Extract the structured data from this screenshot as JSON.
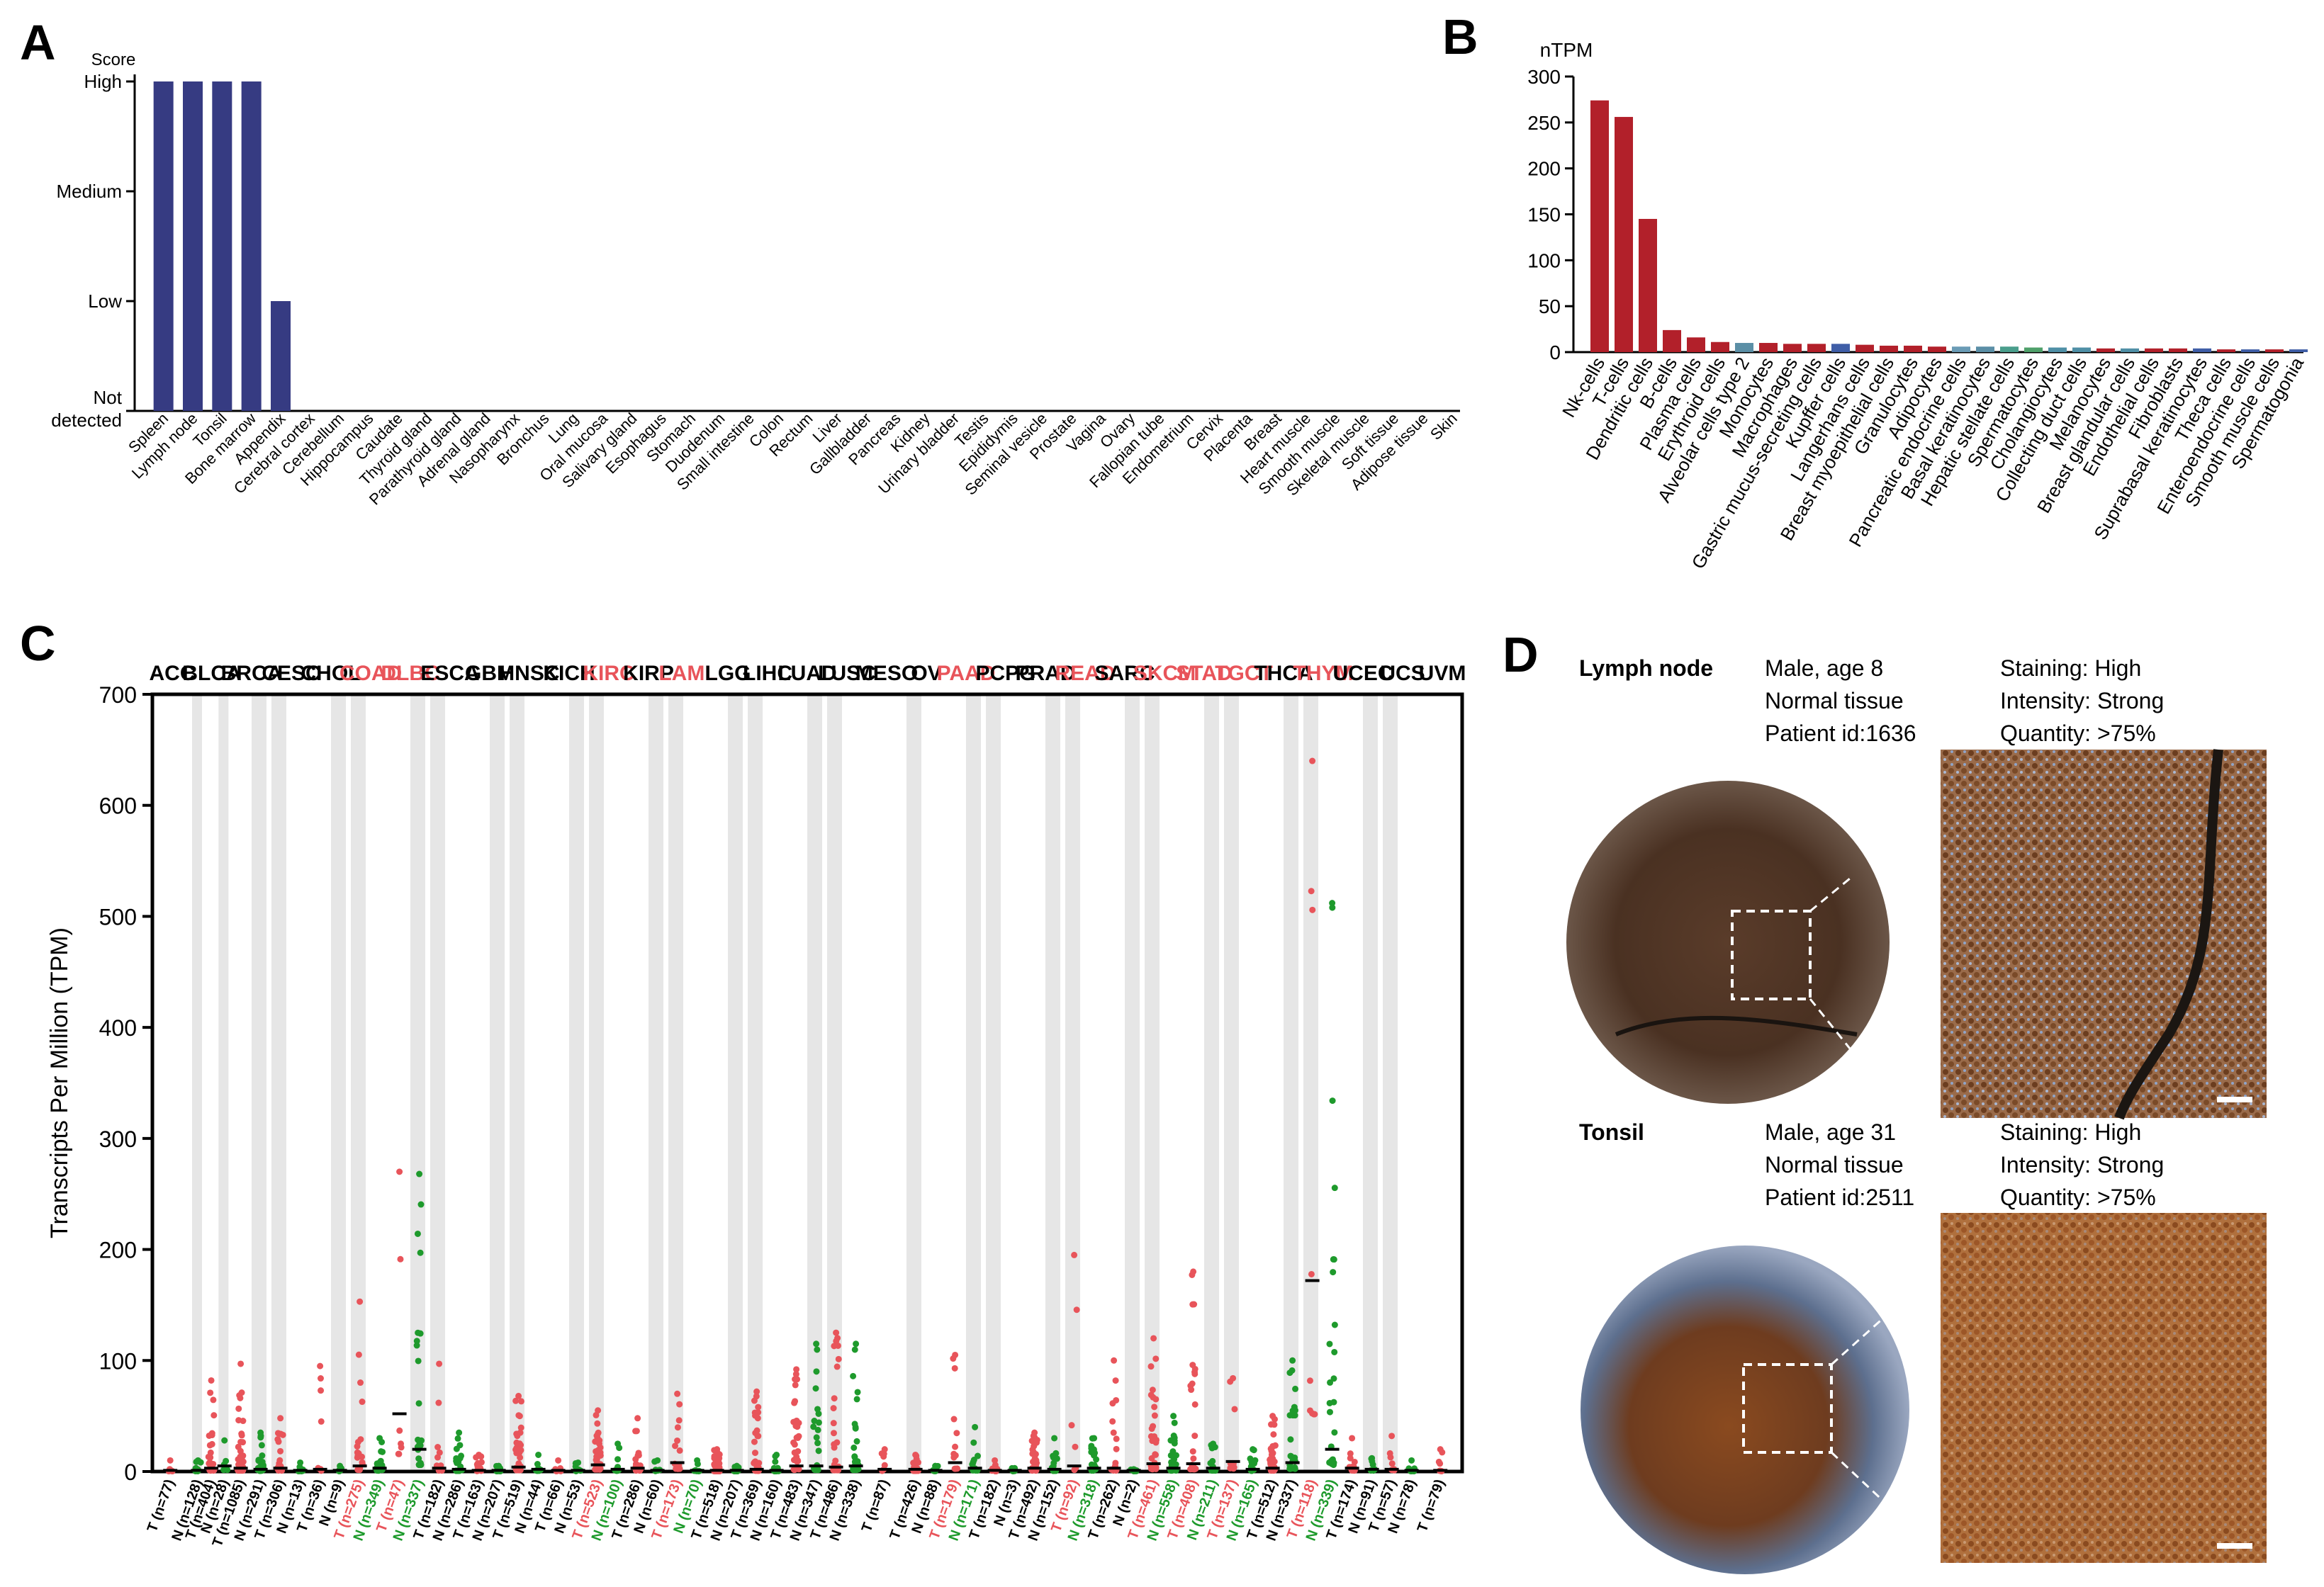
{
  "panels": {
    "a": "A",
    "b": "B",
    "c": "C",
    "d": "D"
  },
  "chart_data": [
    {
      "id": "A",
      "type": "bar",
      "title": "",
      "ylabel": "Score",
      "yticks": [
        "Not detected",
        "Low",
        "Medium",
        "High"
      ],
      "ylim": [
        0,
        3
      ],
      "categories": [
        "Spleen",
        "Lymph node",
        "Tonsil",
        "Bone marrow",
        "Appendix",
        "Cerebral cortex",
        "Cerebellum",
        "Hippocampus",
        "Caudate",
        "Thyroid gland",
        "Parathyroid gland",
        "Adrenal gland",
        "Nasopharynx",
        "Bronchus",
        "Lung",
        "Oral mucosa",
        "Salivary gland",
        "Esophagus",
        "Stomach",
        "Duodenum",
        "Small intestine",
        "Colon",
        "Rectum",
        "Liver",
        "Gallbladder",
        "Pancreas",
        "Kidney",
        "Urinary bladder",
        "Testis",
        "Epididymis",
        "Seminal vesicle",
        "Prostate",
        "Vagina",
        "Ovary",
        "Fallopian tube",
        "Endometrium",
        "Cervix",
        "Placenta",
        "Breast",
        "Heart muscle",
        "Smooth muscle",
        "Skeletal muscle",
        "Soft tissue",
        "Adipose tissue",
        "Skin"
      ],
      "values": [
        3,
        3,
        3,
        3,
        1,
        0,
        0,
        0,
        0,
        0,
        0,
        0,
        0,
        0,
        0,
        0,
        0,
        0,
        0,
        0,
        0,
        0,
        0,
        0,
        0,
        0,
        0,
        0,
        0,
        0,
        0,
        0,
        0,
        0,
        0,
        0,
        0,
        0,
        0,
        0,
        0,
        0,
        0,
        0,
        0
      ],
      "color": "#363b82"
    },
    {
      "id": "B",
      "type": "bar",
      "ylabel": "nTPM",
      "ylim": [
        0,
        300
      ],
      "yticks": [
        0,
        50,
        100,
        150,
        200,
        250,
        300
      ],
      "categories": [
        "Nk-cells",
        "T-cells",
        "Dendritic cells",
        "B-cells",
        "Plasma cells",
        "Erythroid cells",
        "Alveolar cells type 2",
        "Monocytes",
        "Macrophages",
        "Gastric mucus-secreting cells",
        "Kupffer cells",
        "Langerhans cells",
        "Breast myoepithelial cells",
        "Granulocytes",
        "Adipocytes",
        "Pancreatic endocrine cells",
        "Basal keratinocytes",
        "Hepatic stellate cells",
        "Spermatocytes",
        "Cholangiocytes",
        "Collecting duct cells",
        "Melanocytes",
        "Breast glandular cells",
        "Endothelial cells",
        "Fibroblasts",
        "Suprabasal keratinocytes",
        "Theca cells",
        "Enteroendocrine cells",
        "Smooth muscle cells",
        "Spermatogonia"
      ],
      "values": [
        274,
        256,
        145,
        24,
        16,
        11,
        10,
        10,
        9,
        9,
        9,
        8,
        7,
        7,
        6,
        6,
        6,
        6,
        5,
        5,
        5,
        4,
        4,
        4,
        4,
        4,
        3,
        3,
        3,
        3
      ],
      "colors": [
        "#b2202a",
        "#b2202a",
        "#b2202a",
        "#b2202a",
        "#b2202a",
        "#b2202a",
        "#5b8fa6",
        "#b2202a",
        "#b2202a",
        "#b2202a",
        "#3f5ea7",
        "#b2202a",
        "#b2202a",
        "#b2202a",
        "#b2202a",
        "#6a9bb5",
        "#5b8fa6",
        "#4a9e8c",
        "#4fa06a",
        "#4f8fa6",
        "#4f8fa6",
        "#b2202a",
        "#4f8fa6",
        "#b2202a",
        "#b2202a",
        "#3f5ea7",
        "#b2202a",
        "#3f5ea7",
        "#b2202a",
        "#3f5ea7"
      ]
    },
    {
      "id": "C",
      "type": "scatter",
      "ylabel": "Transcripts Per Million (TPM)",
      "ylim": [
        0,
        700
      ],
      "yticks": [
        0,
        100,
        200,
        300,
        400,
        500,
        600,
        700
      ],
      "cancers": [
        {
          "name": "ACC",
          "hl": false,
          "groups": [
            {
              "g": "T",
              "n": 77,
              "med": 1,
              "max": 10
            }
          ]
        },
        {
          "name": "BLCA",
          "hl": false,
          "groups": [
            {
              "g": "N",
              "n": 128,
              "med": 1,
              "max": 10
            },
            {
              "g": "T",
              "n": 404,
              "med": 3,
              "max": 82
            },
            {
              "g": "N",
              "n": 28,
              "med": 5,
              "max": 28
            }
          ]
        },
        {
          "name": "BRCA",
          "hl": false,
          "groups": [
            {
              "g": "T",
              "n": 1085,
              "med": 3,
              "max": 97
            },
            {
              "g": "N",
              "n": 291,
              "med": 2,
              "max": 35
            }
          ]
        },
        {
          "name": "CESC",
          "hl": false,
          "groups": [
            {
              "g": "T",
              "n": 306,
              "med": 3,
              "max": 48
            },
            {
              "g": "N",
              "n": 13,
              "med": 1,
              "max": 8
            }
          ]
        },
        {
          "name": "CHOL",
          "hl": false,
          "groups": [
            {
              "g": "T",
              "n": 36,
              "med": 2,
              "max": 95
            },
            {
              "g": "N",
              "n": 9,
              "med": 1,
              "max": 5
            }
          ]
        },
        {
          "name": "COAD",
          "hl": true,
          "groups": [
            {
              "g": "T",
              "n": 275,
              "med": 5,
              "max": 153
            },
            {
              "g": "N",
              "n": 349,
              "med": 3,
              "max": 30
            }
          ]
        },
        {
          "name": "DLBC",
          "hl": true,
          "groups": [
            {
              "g": "T",
              "n": 47,
              "med": 52,
              "max": 270
            },
            {
              "g": "N",
              "n": 337,
              "med": 20,
              "max": 268
            }
          ]
        },
        {
          "name": "ESCA",
          "hl": false,
          "groups": [
            {
              "g": "T",
              "n": 182,
              "med": 3,
              "max": 97
            },
            {
              "g": "N",
              "n": 286,
              "med": 2,
              "max": 35
            }
          ]
        },
        {
          "name": "GBM",
          "hl": false,
          "groups": [
            {
              "g": "T",
              "n": 163,
              "med": 1,
              "max": 15
            },
            {
              "g": "N",
              "n": 207,
              "med": 1,
              "max": 5
            }
          ]
        },
        {
          "name": "HNSC",
          "hl": false,
          "groups": [
            {
              "g": "T",
              "n": 519,
              "med": 4,
              "max": 68
            },
            {
              "g": "N",
              "n": 44,
              "med": 2,
              "max": 15
            }
          ]
        },
        {
          "name": "KICH",
          "hl": false,
          "groups": [
            {
              "g": "T",
              "n": 66,
              "med": 1,
              "max": 10
            },
            {
              "g": "N",
              "n": 53,
              "med": 1,
              "max": 8
            }
          ]
        },
        {
          "name": "KIRC",
          "hl": true,
          "groups": [
            {
              "g": "T",
              "n": 523,
              "med": 6,
              "max": 55
            },
            {
              "g": "N",
              "n": 100,
              "med": 2,
              "max": 25
            }
          ]
        },
        {
          "name": "KIRP",
          "hl": false,
          "groups": [
            {
              "g": "T",
              "n": 286,
              "med": 3,
              "max": 48
            },
            {
              "g": "N",
              "n": 60,
              "med": 1,
              "max": 10
            }
          ]
        },
        {
          "name": "LAML",
          "hl": true,
          "groups": [
            {
              "g": "T",
              "n": 173,
              "med": 8,
              "max": 70
            },
            {
              "g": "N",
              "n": 70,
              "med": 1,
              "max": 10
            }
          ]
        },
        {
          "name": "LGG",
          "hl": false,
          "groups": [
            {
              "g": "T",
              "n": 518,
              "med": 1,
              "max": 20
            },
            {
              "g": "N",
              "n": 207,
              "med": 1,
              "max": 5
            }
          ]
        },
        {
          "name": "LIHC",
          "hl": false,
          "groups": [
            {
              "g": "T",
              "n": 369,
              "med": 2,
              "max": 72
            },
            {
              "g": "N",
              "n": 160,
              "med": 1,
              "max": 15
            }
          ]
        },
        {
          "name": "LUAD",
          "hl": false,
          "groups": [
            {
              "g": "T",
              "n": 483,
              "med": 5,
              "max": 92
            },
            {
              "g": "N",
              "n": 347,
              "med": 5,
              "max": 115
            }
          ]
        },
        {
          "name": "LUSC",
          "hl": false,
          "groups": [
            {
              "g": "T",
              "n": 486,
              "med": 4,
              "max": 125
            },
            {
              "g": "N",
              "n": 338,
              "med": 5,
              "max": 115
            }
          ]
        },
        {
          "name": "MESO",
          "hl": false,
          "groups": [
            {
              "g": "T",
              "n": 87,
              "med": 2,
              "max": 20
            }
          ]
        },
        {
          "name": "OV",
          "hl": false,
          "groups": [
            {
              "g": "T",
              "n": 426,
              "med": 2,
              "max": 15
            },
            {
              "g": "N",
              "n": 88,
              "med": 1,
              "max": 5
            }
          ]
        },
        {
          "name": "PAAD",
          "hl": true,
          "groups": [
            {
              "g": "T",
              "n": 179,
              "med": 8,
              "max": 105
            },
            {
              "g": "N",
              "n": 171,
              "med": 3,
              "max": 40
            }
          ]
        },
        {
          "name": "PCPG",
          "hl": false,
          "groups": [
            {
              "g": "T",
              "n": 182,
              "med": 1,
              "max": 10
            },
            {
              "g": "N",
              "n": 3,
              "med": 1,
              "max": 3
            }
          ]
        },
        {
          "name": "PRAD",
          "hl": false,
          "groups": [
            {
              "g": "T",
              "n": 492,
              "med": 3,
              "max": 35
            },
            {
              "g": "N",
              "n": 152,
              "med": 2,
              "max": 30
            }
          ]
        },
        {
          "name": "READ",
          "hl": true,
          "groups": [
            {
              "g": "T",
              "n": 92,
              "med": 5,
              "max": 195
            },
            {
              "g": "N",
              "n": 318,
              "med": 3,
              "max": 30
            }
          ]
        },
        {
          "name": "SARC",
          "hl": false,
          "groups": [
            {
              "g": "T",
              "n": 262,
              "med": 3,
              "max": 100
            },
            {
              "g": "N",
              "n": 2,
              "med": 1,
              "max": 2
            }
          ]
        },
        {
          "name": "SKCM",
          "hl": true,
          "groups": [
            {
              "g": "T",
              "n": 461,
              "med": 7,
              "max": 120
            },
            {
              "g": "N",
              "n": 558,
              "med": 3,
              "max": 50
            }
          ]
        },
        {
          "name": "STAD",
          "hl": true,
          "groups": [
            {
              "g": "T",
              "n": 408,
              "med": 7,
              "max": 180
            },
            {
              "g": "N",
              "n": 211,
              "med": 3,
              "max": 25
            }
          ]
        },
        {
          "name": "TGCT",
          "hl": true,
          "groups": [
            {
              "g": "T",
              "n": 137,
              "med": 9,
              "max": 84
            },
            {
              "g": "N",
              "n": 165,
              "med": 2,
              "max": 20
            }
          ]
        },
        {
          "name": "THCA",
          "hl": false,
          "groups": [
            {
              "g": "T",
              "n": 512,
              "med": 3,
              "max": 50
            },
            {
              "g": "N",
              "n": 337,
              "med": 8,
              "max": 100
            }
          ]
        },
        {
          "name": "THYM",
          "hl": true,
          "groups": [
            {
              "g": "T",
              "n": 118,
              "med": 172,
              "max": 640
            },
            {
              "g": "N",
              "n": 339,
              "med": 20,
              "max": 512
            }
          ]
        },
        {
          "name": "UCEC",
          "hl": false,
          "groups": [
            {
              "g": "T",
              "n": 174,
              "med": 3,
              "max": 30
            },
            {
              "g": "N",
              "n": 91,
              "med": 2,
              "max": 12
            }
          ]
        },
        {
          "name": "UCS",
          "hl": false,
          "groups": [
            {
              "g": "T",
              "n": 57,
              "med": 2,
              "max": 32
            },
            {
              "g": "N",
              "n": 78,
              "med": 1,
              "max": 10
            }
          ]
        },
        {
          "name": "UVM",
          "hl": false,
          "groups": [
            {
              "g": "T",
              "n": 79,
              "med": 1,
              "max": 20
            }
          ]
        }
      ]
    }
  ],
  "panel_d": {
    "samples": [
      {
        "tissue": "Lymph node",
        "sex_age": "Male, age 8",
        "tissue_type": "Normal tissue",
        "patient": "Patient id:1636",
        "staining": "Staining: High",
        "intensity": "Intensity: Strong",
        "quantity": "Quantity: >75%"
      },
      {
        "tissue": "Tonsil",
        "sex_age": "Male, age 31",
        "tissue_type": "Normal tissue",
        "patient": "Patient id:2511",
        "staining": "Staining: High",
        "intensity": "Intensity: Strong",
        "quantity": "Quantity: >75%"
      }
    ]
  }
}
